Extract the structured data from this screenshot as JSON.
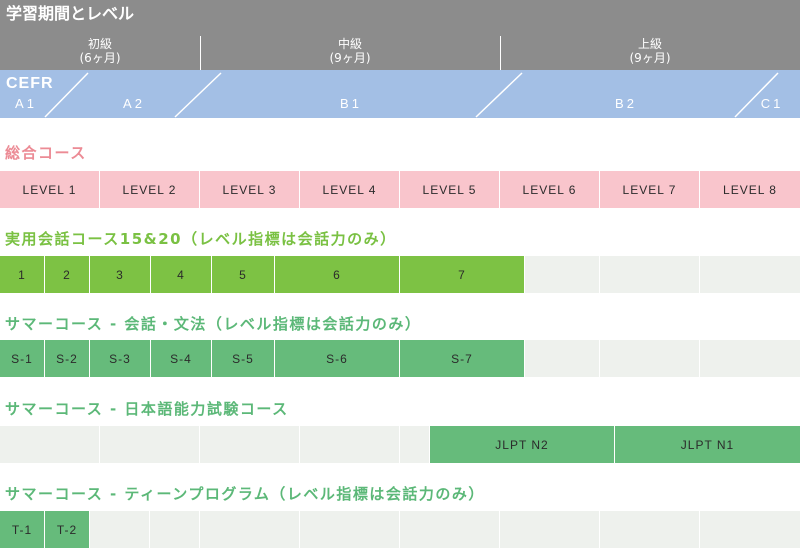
{
  "header": {
    "title": "学習期間とレベル",
    "phases": [
      {
        "name": "初級",
        "duration": "(6ヶ月)"
      },
      {
        "name": "中級",
        "duration": "(9ヶ月)"
      },
      {
        "name": "上級",
        "duration": "(9ヶ月)"
      }
    ]
  },
  "cefr": {
    "label": "CEFR",
    "levels": [
      "A1",
      "A2",
      "B1",
      "B2",
      "C1"
    ]
  },
  "sections": [
    {
      "title": "総合コース",
      "cells": [
        "LEVEL 1",
        "LEVEL 2",
        "LEVEL 3",
        "LEVEL 4",
        "LEVEL 5",
        "LEVEL 6",
        "LEVEL 7",
        "LEVEL 8"
      ]
    },
    {
      "title": "実用会話コース15&20（レベル指標は会話力のみ）",
      "cells": [
        "1",
        "2",
        "3",
        "4",
        "5",
        "6",
        "7"
      ]
    },
    {
      "title": "サマーコース - 会話・文法（レベル指標は会話力のみ）",
      "cells": [
        "S-1",
        "S-2",
        "S-3",
        "S-4",
        "S-5",
        "S-6",
        "S-7"
      ]
    },
    {
      "title": "サマーコース - 日本語能力試験コース",
      "cells": [
        "JLPT N2",
        "JLPT N1"
      ]
    },
    {
      "title": "サマーコース - ティーンプログラム（レベル指標は会話力のみ）",
      "cells": [
        "T-1",
        "T-2"
      ]
    }
  ],
  "colors": {
    "header_bg": "#8c8c8c",
    "cefr_bg": "#a3bfe5",
    "general_title": "#ec8b95",
    "general_cell": "#f9c5cc",
    "conversation_title": "#7ac143",
    "conversation_cell": "#7dc244",
    "summer_title": "#5cb878",
    "summer_cell": "#66bb7b",
    "empty_cell": "#eef1ed"
  }
}
